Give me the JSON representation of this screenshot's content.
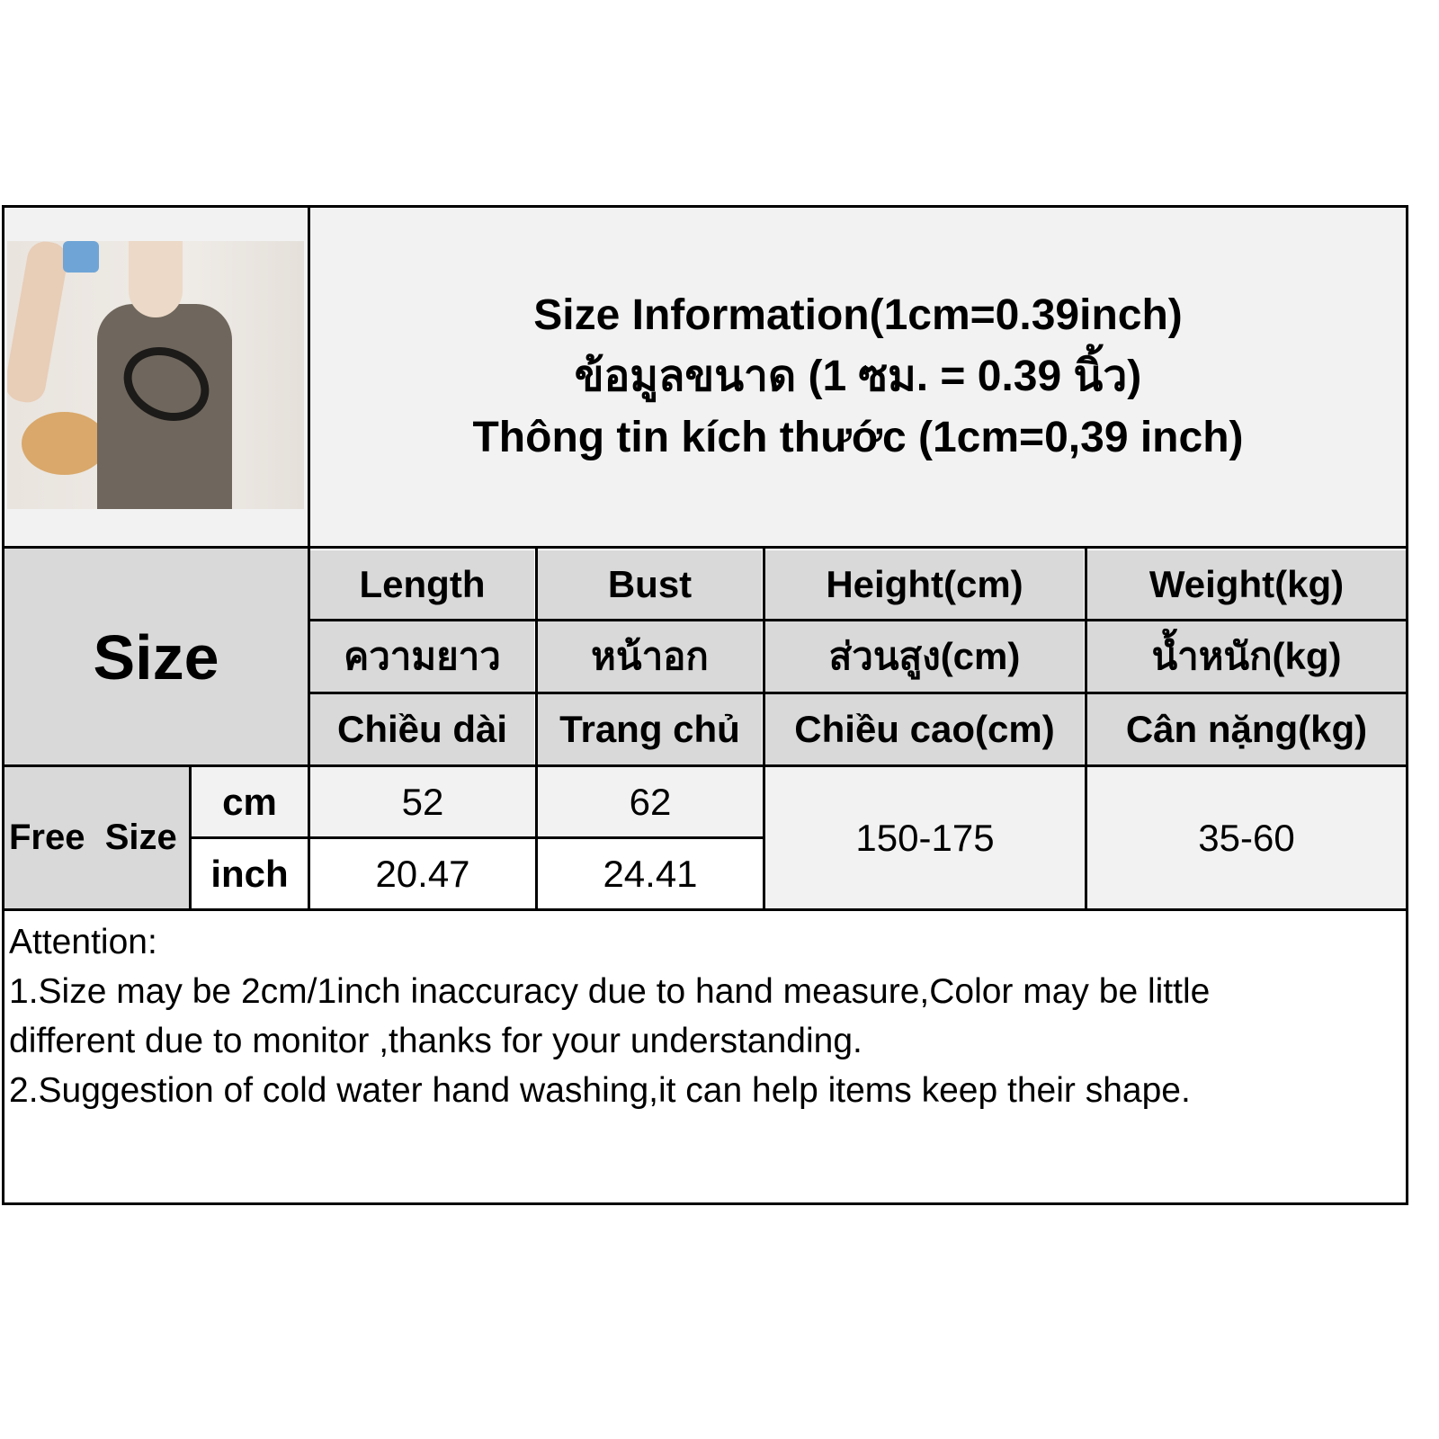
{
  "title_lines": [
    "Size Information(1cm=0.39inch)",
    "ข้อมูลขนาด (1 ซม. = 0.39 นิ้ว)",
    "Thông tin kích thước (1cm=0,39 inch)"
  ],
  "size_label": "Size",
  "columns": [
    {
      "en": "Length",
      "th": "ความยาว",
      "vi": "Chiều dài"
    },
    {
      "en": "Bust",
      "th": "หน้าอก",
      "vi": "Trang chủ"
    },
    {
      "en": "Height(cm)",
      "th": "ส่วนสูง(cm)",
      "vi": "Chiều cao(cm)"
    },
    {
      "en": "Weight(kg)",
      "th": "น้ำหนัก(kg)",
      "vi": "Cân nặng(kg)"
    }
  ],
  "row": {
    "size": "Free  Size",
    "units": [
      "cm",
      "inch"
    ],
    "length": [
      "52",
      "20.47"
    ],
    "bust": [
      "62",
      "24.41"
    ],
    "height": "150-175",
    "weight": "35-60"
  },
  "attention": {
    "heading": "Attention:",
    "lines": [
      "1.Size may be 2cm/1inch inaccuracy due to hand measure,Color may be little",
      "different due to monitor ,thanks for your understanding.",
      "2.Suggestion of cold water hand washing,it can help items keep their shape."
    ]
  },
  "colors": {
    "header_bg": "#d9d9d9",
    "light_bg": "#f2f2f2",
    "border": "#000000"
  }
}
